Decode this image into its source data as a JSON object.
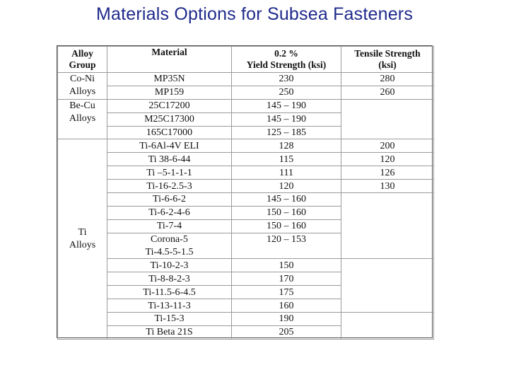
{
  "title": "Materials Options for Subsea Fasteners",
  "table": {
    "headers": {
      "group": [
        "Alloy",
        "Group"
      ],
      "material": "Material",
      "yield": [
        "0.2 %",
        "Yield Strength (ksi)"
      ],
      "tensile": [
        "Tensile Strength",
        "(ksi)"
      ]
    },
    "groups": {
      "coni": [
        "Co-Ni",
        "Alloys"
      ],
      "becu": [
        "Be-Cu",
        "Alloys"
      ],
      "ti": [
        "Ti",
        "Alloys"
      ]
    },
    "rows": [
      {
        "material": "MP35N",
        "yield": "230",
        "tensile": "280"
      },
      {
        "material": "MP159",
        "yield": "250",
        "tensile": "260"
      },
      {
        "material": "25C17200",
        "yield": "145 – 190",
        "tensile": ""
      },
      {
        "material": "M25C17300",
        "yield": "145 – 190",
        "tensile": ""
      },
      {
        "material": "165C17000",
        "yield": "125 – 185",
        "tensile": ""
      },
      {
        "material": "Ti-6Al-4V ELI",
        "yield": "128",
        "tensile": "200"
      },
      {
        "material": "Ti 38-6-44",
        "yield": "115",
        "tensile": "120"
      },
      {
        "material": "Ti –5-1-1-1",
        "yield": "111",
        "tensile": "126"
      },
      {
        "material": "Ti-16-2.5-3",
        "yield": "120",
        "tensile": "130"
      },
      {
        "material": "Ti-6-6-2",
        "yield": "145 – 160",
        "tensile": ""
      },
      {
        "material": "Ti-6-2-4-6",
        "yield": "150 – 160",
        "tensile": ""
      },
      {
        "material": "Ti-7-4",
        "yield": "150 – 160",
        "tensile": ""
      },
      {
        "material": "Corona-5",
        "yield": "120 – 153",
        "tensile": ""
      },
      {
        "material": "Ti-4.5-5-1.5",
        "yield": "",
        "tensile": ""
      },
      {
        "material": "Ti-10-2-3",
        "yield": "150",
        "tensile": ""
      },
      {
        "material": "Ti-8-8-2-3",
        "yield": "170",
        "tensile": ""
      },
      {
        "material": "Ti-11.5-6-4.5",
        "yield": "175",
        "tensile": ""
      },
      {
        "material": "Ti-13-11-3",
        "yield": "160",
        "tensile": ""
      },
      {
        "material": "Ti-15-3",
        "yield": "190",
        "tensile": ""
      },
      {
        "material": "Ti Beta 21S",
        "yield": "205",
        "tensile": ""
      }
    ]
  }
}
